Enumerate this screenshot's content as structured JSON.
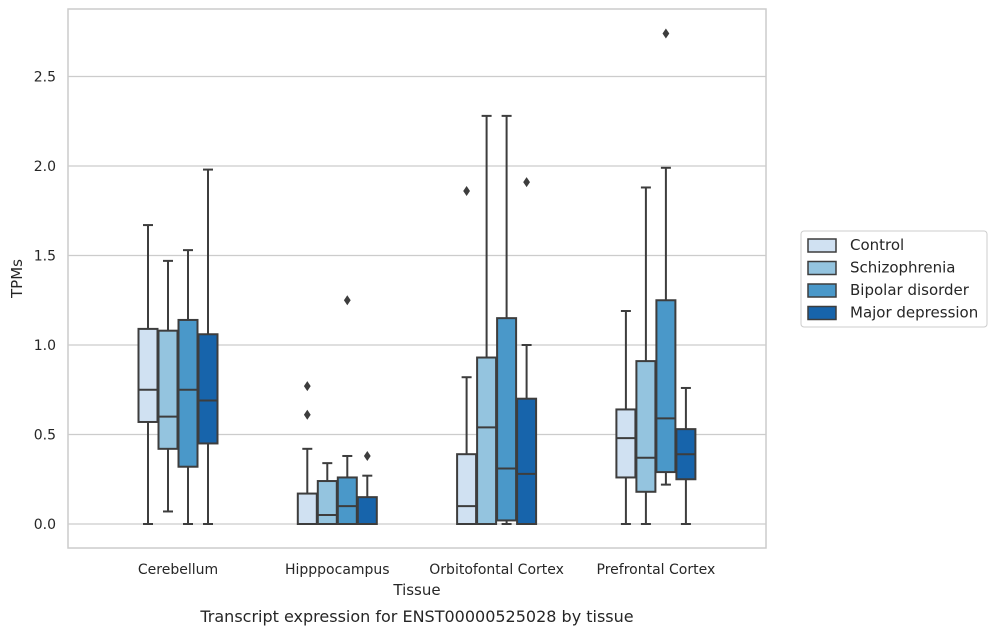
{
  "chart_data": {
    "type": "box",
    "xlabel": "Tissue",
    "ylabel": "TPMs",
    "caption": "Transcript expression for ENST00000525028 by tissue",
    "categories": [
      "Cerebellum",
      "Hipppocampus",
      "Orbitofontal Cortex",
      "Prefrontal Cortex"
    ],
    "ylim": [
      -0.13,
      2.88
    ],
    "yticks": [
      0.0,
      0.5,
      1.0,
      1.5,
      2.0,
      2.5
    ],
    "ytick_labels": [
      "0.0",
      "0.5",
      "1.0",
      "1.5",
      "2.0",
      "2.5"
    ],
    "grid": "horizontal",
    "legend_position": "right",
    "series": [
      {
        "name": "Control",
        "color": "#d0e1f2",
        "boxes": [
          {
            "whislo": 0.0,
            "q1": 0.57,
            "med": 0.75,
            "q3": 1.09,
            "whishi": 1.67,
            "fliers": []
          },
          {
            "whislo": 0.0,
            "q1": 0.0,
            "med": 0.0,
            "q3": 0.17,
            "whishi": 0.42,
            "fliers": [
              0.61,
              0.77
            ]
          },
          {
            "whislo": 0.0,
            "q1": 0.0,
            "med": 0.1,
            "q3": 0.39,
            "whishi": 0.82,
            "fliers": [
              1.86
            ]
          },
          {
            "whislo": 0.0,
            "q1": 0.26,
            "med": 0.48,
            "q3": 0.64,
            "whishi": 1.19,
            "fliers": []
          }
        ]
      },
      {
        "name": "Schizophrenia",
        "color": "#94c4df",
        "boxes": [
          {
            "whislo": 0.07,
            "q1": 0.42,
            "med": 0.6,
            "q3": 1.08,
            "whishi": 1.47,
            "fliers": []
          },
          {
            "whislo": 0.0,
            "q1": 0.0,
            "med": 0.05,
            "q3": 0.24,
            "whishi": 0.34,
            "fliers": []
          },
          {
            "whislo": 0.0,
            "q1": 0.0,
            "med": 0.54,
            "q3": 0.93,
            "whishi": 2.28,
            "fliers": []
          },
          {
            "whislo": 0.0,
            "q1": 0.18,
            "med": 0.37,
            "q3": 0.91,
            "whishi": 1.88,
            "fliers": []
          }
        ]
      },
      {
        "name": "Bipolar disorder",
        "color": "#4a98c9",
        "boxes": [
          {
            "whislo": 0.0,
            "q1": 0.32,
            "med": 0.75,
            "q3": 1.14,
            "whishi": 1.53,
            "fliers": []
          },
          {
            "whislo": 0.0,
            "q1": 0.0,
            "med": 0.1,
            "q3": 0.26,
            "whishi": 0.38,
            "fliers": [
              1.25
            ]
          },
          {
            "whislo": 0.0,
            "q1": 0.02,
            "med": 0.31,
            "q3": 1.15,
            "whishi": 2.28,
            "fliers": []
          },
          {
            "whislo": 0.22,
            "q1": 0.29,
            "med": 0.59,
            "q3": 1.25,
            "whishi": 1.99,
            "fliers": [
              2.74
            ]
          }
        ]
      },
      {
        "name": "Major depression",
        "color": "#1764ab",
        "boxes": [
          {
            "whislo": 0.0,
            "q1": 0.45,
            "med": 0.69,
            "q3": 1.06,
            "whishi": 1.98,
            "fliers": []
          },
          {
            "whislo": 0.0,
            "q1": 0.0,
            "med": 0.0,
            "q3": 0.15,
            "whishi": 0.27,
            "fliers": [
              0.38
            ]
          },
          {
            "whislo": 0.0,
            "q1": 0.0,
            "med": 0.28,
            "q3": 0.7,
            "whishi": 1.0,
            "fliers": [
              1.91
            ]
          },
          {
            "whislo": 0.0,
            "q1": 0.25,
            "med": 0.39,
            "q3": 0.53,
            "whishi": 0.76,
            "fliers": []
          }
        ]
      }
    ]
  }
}
